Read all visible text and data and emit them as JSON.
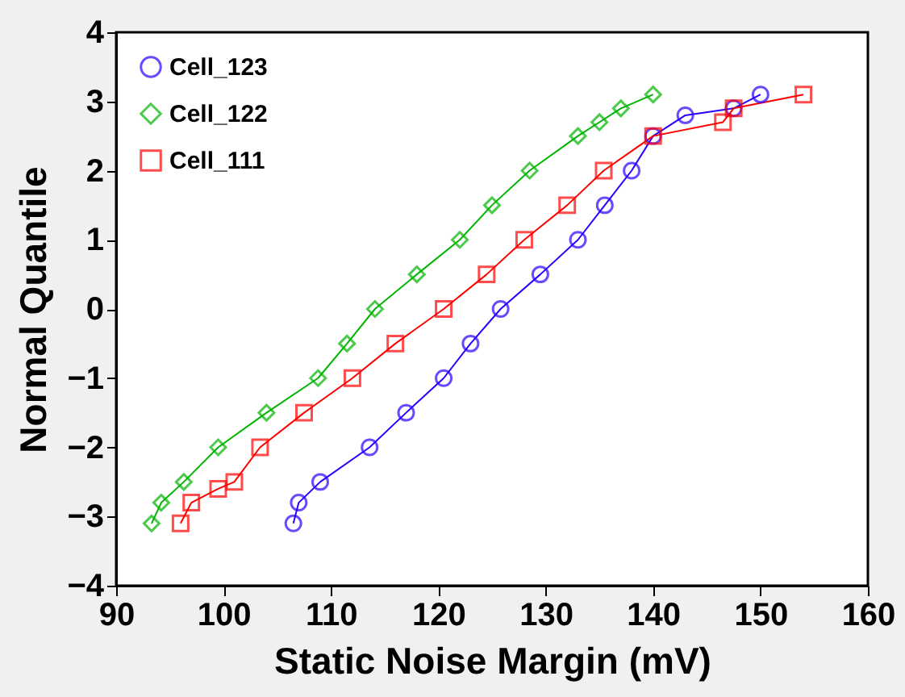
{
  "chart_data": {
    "type": "line",
    "xlabel": "Static Noise Margin (mV)",
    "ylabel": "Normal Quantile",
    "xlim": [
      90,
      160
    ],
    "xticks": [
      90,
      100,
      110,
      120,
      130,
      140,
      150,
      160
    ],
    "ylim": [
      -4,
      4
    ],
    "yticks": [
      -4,
      -3,
      -2,
      -1,
      0,
      1,
      2,
      3,
      4
    ],
    "grid": false,
    "legend": "top left",
    "line_style": "solid",
    "series": [
      {
        "name": "Cell_123",
        "color": "#2a00ff",
        "marker": "circle",
        "x": [
          106.5,
          107,
          109,
          113.6,
          117,
          120.5,
          123,
          125.8,
          129.5,
          133,
          135.5,
          138,
          140,
          143,
          147.5,
          150
        ],
        "values": [
          -3.1,
          -2.8,
          -2.5,
          -2,
          -1.5,
          -1,
          -0.5,
          0,
          0.5,
          1,
          1.5,
          2,
          2.5,
          2.8,
          2.9,
          3.1
        ]
      },
      {
        "name": "Cell_122",
        "color": "#00b400",
        "marker": "diamond",
        "x": [
          93.3,
          94.2,
          96.3,
          99.5,
          104,
          108.8,
          111.5,
          114.1,
          118,
          122,
          125,
          128.5,
          133,
          135,
          137,
          140
        ],
        "values": [
          -3.1,
          -2.8,
          -2.5,
          -2,
          -1.5,
          -1,
          -0.5,
          0,
          0.5,
          1,
          1.5,
          2,
          2.5,
          2.7,
          2.9,
          3.1
        ]
      },
      {
        "name": "Cell_111",
        "color": "#ff0000",
        "marker": "square",
        "x": [
          96,
          97,
          99.5,
          101,
          103.4,
          107.5,
          112,
          116,
          120.5,
          124.5,
          128,
          132,
          135.4,
          140,
          146.5,
          147.5,
          154
        ],
        "values": [
          -3.1,
          -2.8,
          -2.6,
          -2.5,
          -2,
          -1.5,
          -1,
          -0.5,
          0,
          0.5,
          1,
          1.5,
          2,
          2.5,
          2.7,
          2.9,
          3.1
        ]
      }
    ]
  }
}
